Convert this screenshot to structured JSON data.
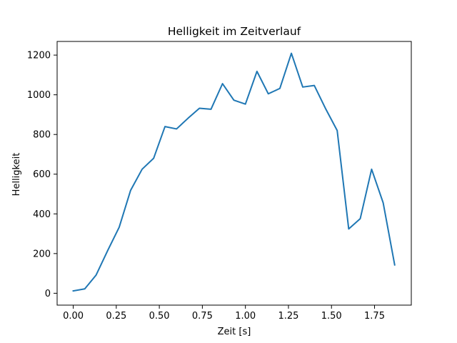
{
  "chart_data": {
    "type": "line",
    "title": "Helligkeit im Zeitverlauf",
    "xlabel": "Zeit [s]",
    "ylabel": "Helligkeit",
    "xlim": [
      -0.0935,
      1.9635
    ],
    "ylim": [
      -59.8,
      1268.8
    ],
    "xticks": [
      0.0,
      0.25,
      0.5,
      0.75,
      1.0,
      1.25,
      1.5,
      1.75
    ],
    "xtick_labels": [
      "0.00",
      "0.25",
      "0.50",
      "0.75",
      "1.00",
      "1.25",
      "1.50",
      "1.75"
    ],
    "yticks": [
      0,
      200,
      400,
      600,
      800,
      1000,
      1200
    ],
    "ytick_labels": [
      "0",
      "200",
      "400",
      "600",
      "800",
      "1000",
      "1200"
    ],
    "grid": false,
    "legend": "none",
    "series": [
      {
        "color": "#1f77b4",
        "x": [
          0.0,
          0.067,
          0.133,
          0.2,
          0.267,
          0.333,
          0.4,
          0.467,
          0.533,
          0.6,
          0.667,
          0.733,
          0.8,
          0.867,
          0.933,
          1.0,
          1.067,
          1.133,
          1.2,
          1.267,
          1.333,
          1.4,
          1.467,
          1.533,
          1.6,
          1.667,
          1.733,
          1.8,
          1.867
        ],
        "values": [
          12,
          22,
          92,
          215,
          333,
          518,
          625,
          680,
          840,
          828,
          882,
          932,
          927,
          1056,
          973,
          953,
          1118,
          1005,
          1032,
          1209,
          1039,
          1047,
          928,
          820,
          324,
          376,
          625,
          456,
          143
        ]
      }
    ]
  }
}
